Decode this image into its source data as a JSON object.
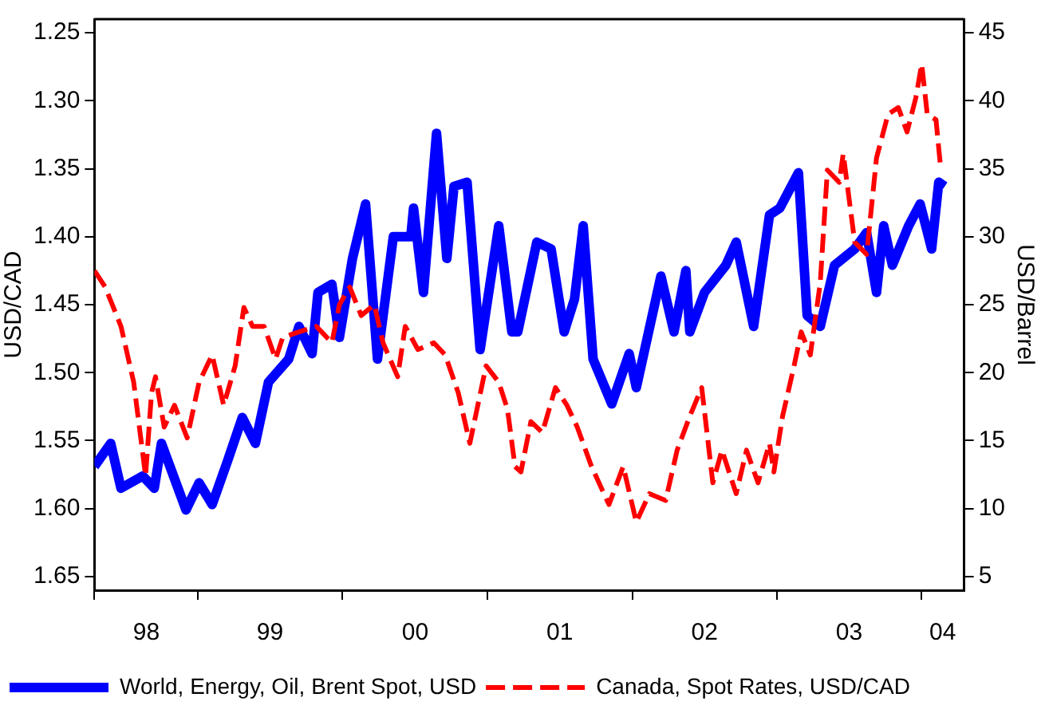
{
  "chart_data": {
    "type": "line",
    "ylabel": "USD/CAD",
    "y2label": "USD/Barrel",
    "xlim": [
      "1998-04-15",
      "2004-04-17"
    ],
    "xticks": [
      {
        "value": "1998-04-15",
        "label": null
      },
      {
        "value": "1999-01-01",
        "label": null
      },
      {
        "value": "2000-01-01",
        "label": null
      },
      {
        "value": "2001-01-01",
        "label": null
      },
      {
        "value": "2002-01-01",
        "label": null
      },
      {
        "value": "2003-01-01",
        "label": null
      },
      {
        "value": "2004-01-01",
        "label": null
      },
      {
        "value": "1998-08-24",
        "label": "98"
      },
      {
        "value": "1999-07-02",
        "label": "99"
      },
      {
        "value": "2000-07-02",
        "label": "00"
      },
      {
        "value": "2001-07-02",
        "label": "01"
      },
      {
        "value": "2002-07-02",
        "label": "02"
      },
      {
        "value": "2003-07-02",
        "label": "03"
      },
      {
        "value": "2004-02-23",
        "label": "04"
      }
    ],
    "ylim": [
      1.66,
      1.24
    ],
    "yticks": [
      {
        "value": 1.25,
        "label": "1.25"
      },
      {
        "value": 1.3,
        "label": "1.30"
      },
      {
        "value": 1.35,
        "label": "1.35"
      },
      {
        "value": 1.4,
        "label": "1.40"
      },
      {
        "value": 1.45,
        "label": "1.45"
      },
      {
        "value": 1.5,
        "label": "1.50"
      },
      {
        "value": 1.55,
        "label": "1.55"
      },
      {
        "value": 1.6,
        "label": "1.60"
      },
      {
        "value": 1.65,
        "label": "1.65"
      }
    ],
    "y2lim": [
      4,
      46
    ],
    "y2ticks": [
      5,
      10,
      15,
      20,
      25,
      30,
      35,
      40,
      45
    ],
    "grid": false,
    "legend": "bottom",
    "marker": "none",
    "series": [
      {
        "name": "World, Energy, Oil, Brent Spot, USD",
        "color": "#0000ff",
        "axis": "y2",
        "line_style": "solid",
        "x": [
          "1998-04-15",
          "1998-05-26",
          "1998-06-21",
          "1998-08-15",
          "1998-09-13",
          "1998-10-01",
          "1998-12-02",
          "1999-01-04",
          "1999-02-06",
          "1999-03-18",
          "1999-04-23",
          "1999-05-26",
          "1999-06-28",
          "1999-08-18",
          "1999-09-13",
          "1999-10-16",
          "1999-10-31",
          "1999-12-05",
          "1999-12-24",
          "2000-01-26",
          "2000-02-28",
          "2000-03-29",
          "2000-05-08",
          "2000-06-21",
          "2000-06-28",
          "2000-07-23",
          "2000-08-25",
          "2000-09-20",
          "2000-10-08",
          "2000-11-10",
          "2000-12-13",
          "2001-01-29",
          "2001-03-03",
          "2001-03-18",
          "2001-05-05",
          "2001-06-10",
          "2001-07-13",
          "2001-08-08",
          "2001-08-30",
          "2001-09-24",
          "2001-11-10",
          "2001-12-24",
          "2002-01-11",
          "2002-03-14",
          "2002-04-16",
          "2002-05-16",
          "2002-05-26",
          "2002-07-02",
          "2002-08-25",
          "2002-09-20",
          "2002-11-03",
          "2002-12-13",
          "2003-01-08",
          "2003-02-24",
          "2003-03-18",
          "2003-04-20",
          "2003-05-26",
          "2003-07-16",
          "2003-08-15",
          "2003-09-09",
          "2003-09-27",
          "2003-10-19",
          "2003-11-29",
          "2003-12-28",
          "2004-01-26",
          "2004-02-13",
          "2004-02-28"
        ],
        "values": [
          13.1,
          14.8,
          11.5,
          12.4,
          11.5,
          14.8,
          9.9,
          11.9,
          10.3,
          13.6,
          16.7,
          14.8,
          19.3,
          21.0,
          23.4,
          21.4,
          25.9,
          26.5,
          22.6,
          28.4,
          32.4,
          21.0,
          30.0,
          30.0,
          32.1,
          25.9,
          37.6,
          28.4,
          33.7,
          34.0,
          21.7,
          30.8,
          23.0,
          23.0,
          29.6,
          29.1,
          23.0,
          25.4,
          30.8,
          21.0,
          17.7,
          21.4,
          18.9,
          27.1,
          23.0,
          27.5,
          23.0,
          25.9,
          27.9,
          29.6,
          23.4,
          31.6,
          32.1,
          34.7,
          24.2,
          23.4,
          27.9,
          29.1,
          30.3,
          25.9,
          30.8,
          27.9,
          30.8,
          32.4,
          29.1,
          34.0,
          33.7
        ]
      },
      {
        "name": "Canada, Spot Rates, USD/CAD",
        "color": "#ff0000",
        "axis": "y",
        "line_style": "dashed",
        "x": [
          "1998-04-15",
          "1998-05-12",
          "1998-06-21",
          "1998-07-23",
          "1998-08-22",
          "1998-09-06",
          "1998-09-16",
          "1998-10-08",
          "1998-11-03",
          "1998-12-05",
          "1999-01-04",
          "1999-02-06",
          "1999-03-07",
          "1999-04-05",
          "1999-04-27",
          "1999-05-19",
          "1999-06-17",
          "1999-07-16",
          "1999-08-03",
          "1999-09-13",
          "1999-10-27",
          "1999-12-05",
          "1999-12-24",
          "2000-01-19",
          "2000-02-17",
          "2000-03-21",
          "2000-04-12",
          "2000-05-19",
          "2000-06-07",
          "2000-07-09",
          "2000-08-18",
          "2000-09-16",
          "2000-10-19",
          "2000-11-17",
          "2000-12-28",
          "2001-01-29",
          "2001-02-20",
          "2001-03-11",
          "2001-03-26",
          "2001-04-20",
          "2001-05-19",
          "2001-06-21",
          "2001-07-20",
          "2001-08-15",
          "2001-09-20",
          "2001-11-03",
          "2001-12-09",
          "2002-01-11",
          "2002-02-13",
          "2002-03-26",
          "2002-04-24",
          "2002-05-26",
          "2002-06-25",
          "2002-07-23",
          "2002-08-15",
          "2002-09-20",
          "2002-10-16",
          "2002-11-14",
          "2002-12-13",
          "2002-12-24",
          "2003-01-15",
          "2003-02-13",
          "2003-03-03",
          "2003-03-26",
          "2003-04-20",
          "2003-05-08",
          "2003-06-07",
          "2003-06-17",
          "2003-07-16",
          "2003-08-15",
          "2003-09-09",
          "2003-10-08",
          "2003-11-03",
          "2003-11-25",
          "2003-12-17",
          "2004-01-01",
          "2004-01-15",
          "2004-02-06",
          "2004-02-17"
        ],
        "values": [
          1.425,
          1.437,
          1.466,
          1.507,
          1.576,
          1.515,
          1.503,
          1.54,
          1.524,
          1.548,
          1.507,
          1.487,
          1.524,
          1.495,
          1.452,
          1.466,
          1.466,
          1.49,
          1.474,
          1.47,
          1.466,
          1.478,
          1.45,
          1.437,
          1.458,
          1.45,
          1.478,
          1.503,
          1.466,
          1.483,
          1.478,
          1.487,
          1.515,
          1.552,
          1.495,
          1.507,
          1.527,
          1.569,
          1.573,
          1.536,
          1.544,
          1.511,
          1.524,
          1.54,
          1.569,
          1.597,
          1.569,
          1.61,
          1.589,
          1.594,
          1.557,
          1.532,
          1.511,
          1.581,
          1.557,
          1.589,
          1.557,
          1.581,
          1.552,
          1.573,
          1.532,
          1.495,
          1.47,
          1.487,
          1.434,
          1.351,
          1.36,
          1.339,
          1.404,
          1.413,
          1.342,
          1.31,
          1.305,
          1.323,
          1.298,
          1.273,
          1.31,
          1.314,
          1.347
        ]
      }
    ]
  }
}
